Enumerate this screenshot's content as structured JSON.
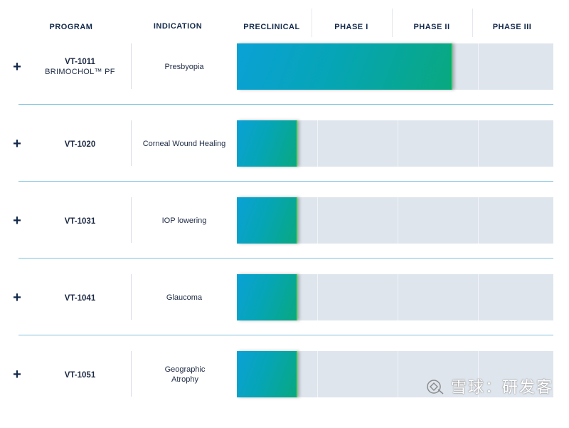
{
  "columns": {
    "program": "PROGRAM",
    "indication": "INDICATION",
    "phases": [
      "PRECLINICAL",
      "PHASE I",
      "PHASE II",
      "PHASE III"
    ]
  },
  "expand_symbol": "+",
  "rows": [
    {
      "program": "VT-1011",
      "program_sub": "BRIMOCHOL™ PF",
      "indication": "Presbyopia",
      "progress_fraction": 0.68
    },
    {
      "program": "VT-1020",
      "program_sub": "",
      "indication": "Corneal Wound Healing",
      "progress_fraction": 0.19
    },
    {
      "program": "VT-1031",
      "program_sub": "",
      "indication": "IOP lowering",
      "progress_fraction": 0.19
    },
    {
      "program": "VT-1041",
      "program_sub": "",
      "indication": "Glaucoma",
      "progress_fraction": 0.19
    },
    {
      "program": "VT-1051",
      "program_sub": "",
      "indication": "Geographic Atrophy",
      "progress_fraction": 0.19
    }
  ],
  "colors": {
    "header_text": "#13294b",
    "track": "#dfe5ed",
    "bar_start": "#0aa1d6",
    "bar_end": "#08a87f",
    "row_divider": "#7fc2de"
  },
  "watermark": {
    "text": "雪球：研发客",
    "icon": "snowball-logo-icon"
  }
}
